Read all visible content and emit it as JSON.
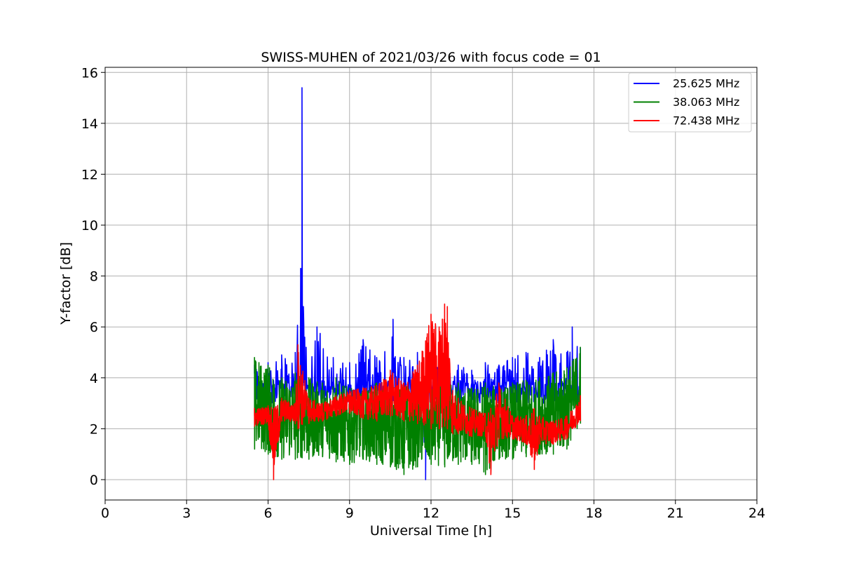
{
  "chart_data": {
    "type": "line",
    "title": "SWISS-MUHEN of 2021/03/26 with focus code = 01",
    "xlabel": "Universal Time [h]",
    "ylabel": "Y-factor [dB]",
    "xlim": [
      0,
      24
    ],
    "ylim": [
      -0.8,
      16.2
    ],
    "xticks": [
      0,
      3,
      6,
      9,
      12,
      15,
      18,
      21,
      24
    ],
    "xtick_labels": [
      "0",
      "3",
      "6",
      "9",
      "12",
      "15",
      "18",
      "21",
      "24"
    ],
    "yticks": [
      0,
      2,
      4,
      6,
      8,
      10,
      12,
      14,
      16
    ],
    "ytick_labels": [
      "0",
      "2",
      "4",
      "6",
      "8",
      "10",
      "12",
      "14",
      "16"
    ],
    "grid": true,
    "legend_position": "top-right",
    "series": [
      {
        "name": "25.625 MHz",
        "color": "#0000ff",
        "x": [
          5.5,
          6.0,
          6.5,
          7.0,
          7.2,
          7.25,
          7.3,
          7.4,
          7.8,
          8.4,
          9.0,
          9.5,
          10.0,
          10.6,
          11.0,
          11.5,
          11.8,
          12.0,
          12.5,
          13.0,
          13.5,
          14.0,
          14.5,
          15.0,
          15.5,
          16.0,
          16.5,
          17.0,
          17.2,
          17.5
        ],
        "y": [
          4.5,
          4.6,
          4.9,
          5.0,
          8.3,
          15.4,
          6.8,
          5.2,
          6.0,
          4.8,
          4.6,
          5.5,
          4.8,
          6.3,
          4.8,
          5.0,
          0.0,
          4.8,
          5.0,
          4.5,
          4.3,
          4.6,
          4.5,
          4.8,
          5.0,
          4.8,
          5.5,
          5.0,
          6.0,
          5.2
        ]
      },
      {
        "name": "38.063 MHz",
        "color": "#008000",
        "x": [
          5.5,
          6.0,
          6.5,
          7.0,
          7.5,
          8.0,
          8.5,
          9.0,
          9.5,
          10.0,
          10.5,
          11.0,
          11.5,
          12.0,
          12.5,
          13.0,
          13.5,
          14.0,
          14.5,
          15.0,
          15.5,
          16.0,
          16.5,
          17.0,
          17.5
        ],
        "y": [
          4.8,
          4.5,
          4.0,
          4.2,
          4.0,
          3.8,
          4.0,
          3.6,
          3.5,
          3.8,
          3.6,
          3.7,
          4.0,
          3.6,
          3.8,
          3.8,
          3.6,
          3.8,
          3.6,
          3.8,
          3.9,
          4.0,
          4.2,
          4.4,
          5.2
        ],
        "y_low": [
          1.2,
          1.0,
          0.8,
          0.8,
          0.8,
          0.9,
          0.7,
          0.6,
          0.8,
          0.6,
          0.5,
          0.2,
          0.5,
          0.6,
          0.5,
          0.6,
          0.6,
          0.2,
          0.8,
          0.8,
          0.9,
          1.0,
          1.0,
          1.2,
          2.2
        ]
      },
      {
        "name": "72.438 MHz",
        "color": "#ff0000",
        "x": [
          5.5,
          6.0,
          6.2,
          6.5,
          7.0,
          7.1,
          7.5,
          8.0,
          8.5,
          9.0,
          9.5,
          10.0,
          10.5,
          11.0,
          11.5,
          12.0,
          12.3,
          12.5,
          12.6,
          12.8,
          13.0,
          13.5,
          14.0,
          14.2,
          14.5,
          15.0,
          15.5,
          15.8,
          16.0,
          16.5,
          17.0,
          17.5
        ],
        "y": [
          2.8,
          2.9,
          2.8,
          3.2,
          3.0,
          5.3,
          3.2,
          3.0,
          3.3,
          3.5,
          3.6,
          3.7,
          4.3,
          3.8,
          4.5,
          6.5,
          6.0,
          6.9,
          6.8,
          3.5,
          3.2,
          2.8,
          2.6,
          2.8,
          3.8,
          2.5,
          2.5,
          2.8,
          2.5,
          2.3,
          2.5,
          3.3
        ],
        "y_low": [
          2.1,
          2.2,
          0.0,
          2.3,
          2.2,
          2.0,
          2.2,
          2.3,
          2.5,
          2.6,
          2.4,
          2.3,
          2.5,
          2.3,
          2.2,
          2.0,
          2.0,
          2.1,
          2.0,
          1.8,
          1.8,
          1.7,
          1.7,
          0.2,
          1.6,
          1.6,
          1.4,
          0.4,
          1.4,
          1.4,
          1.6,
          2.3
        ]
      }
    ]
  }
}
